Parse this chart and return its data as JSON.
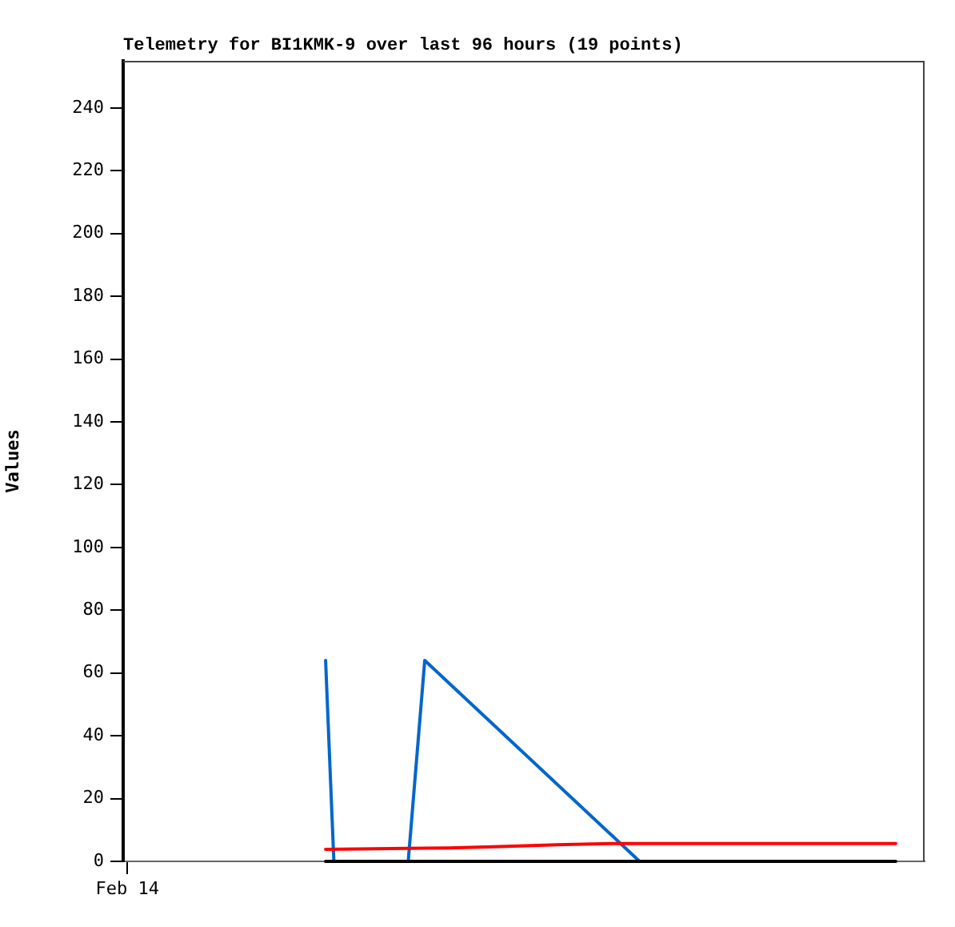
{
  "chart_data": {
    "type": "line",
    "title": "Telemetry for BI1KMK-9 over last 96 hours (19 points)",
    "ylabel": "Values",
    "categories": [
      "Feb 14",
      null,
      null,
      null,
      null,
      null,
      null,
      null,
      null,
      null,
      null,
      null,
      null,
      null,
      null,
      null,
      null,
      null,
      null,
      null,
      null,
      null,
      null,
      null,
      null,
      null,
      null,
      null,
      null,
      null,
      null,
      null,
      null,
      null,
      null,
      null,
      null,
      null,
      null,
      null,
      null,
      null,
      null,
      null,
      null,
      null,
      null,
      null,
      null,
      null,
      null,
      null,
      null,
      null,
      null,
      null,
      null,
      null,
      null,
      null,
      null,
      null,
      null,
      null,
      null,
      null,
      null,
      null,
      null,
      null,
      null,
      null,
      null,
      null,
      null,
      null,
      null,
      null,
      null,
      null,
      null,
      null,
      null,
      null,
      null,
      null,
      null,
      null,
      null,
      null,
      null,
      null,
      null,
      null,
      null,
      null,
      null
    ],
    "ylim": [
      0,
      255
    ],
    "yticks": [
      0,
      20,
      40,
      60,
      80,
      100,
      120,
      140,
      160,
      180,
      200,
      220,
      240
    ],
    "grid": false,
    "legend": false,
    "marker": "none",
    "line_style": "solid",
    "series": [
      {
        "color": "#000000",
        "values": [
          null,
          null,
          null,
          null,
          null,
          null,
          null,
          null,
          null,
          null,
          null,
          null,
          null,
          null,
          null,
          null,
          null,
          null,
          null,
          null,
          null,
          null,
          null,
          null,
          0,
          null,
          null,
          null,
          null,
          null,
          null,
          null,
          null,
          null,
          null,
          null,
          null,
          null,
          null,
          null,
          null,
          null,
          null,
          null,
          null,
          null,
          null,
          null,
          null,
          null,
          null,
          null,
          null,
          null,
          null,
          null,
          null,
          null,
          null,
          null,
          null,
          null,
          null,
          null,
          null,
          null,
          null,
          null,
          null,
          null,
          null,
          null,
          null,
          null,
          null,
          null,
          null,
          null,
          null,
          null,
          null,
          null,
          null,
          null,
          null,
          null,
          null,
          null,
          null,
          null,
          null,
          null,
          null,
          0,
          null,
          null,
          null
        ]
      },
      {
        "color": "#ff0000",
        "values": [
          null,
          null,
          null,
          null,
          null,
          null,
          null,
          null,
          null,
          null,
          null,
          null,
          null,
          null,
          null,
          null,
          null,
          null,
          null,
          null,
          null,
          null,
          null,
          null,
          3.8,
          null,
          null,
          null,
          null,
          null,
          null,
          null,
          null,
          null,
          null,
          null,
          null,
          null,
          null,
          4.3,
          null,
          null,
          null,
          null,
          null,
          null,
          4.8,
          null,
          null,
          null,
          null,
          null,
          5.3,
          null,
          null,
          null,
          null,
          null,
          null,
          5.7,
          null,
          null,
          null,
          null,
          null,
          null,
          null,
          null,
          null,
          null,
          null,
          null,
          null,
          null,
          null,
          null,
          null,
          null,
          null,
          null,
          null,
          null,
          null,
          null,
          null,
          null,
          null,
          null,
          null,
          null,
          null,
          null,
          null,
          5.7,
          null,
          null,
          null
        ]
      },
      {
        "color": "#0066cc",
        "values": [
          null,
          null,
          null,
          null,
          null,
          null,
          null,
          null,
          null,
          null,
          null,
          null,
          null,
          null,
          null,
          null,
          null,
          null,
          null,
          null,
          null,
          null,
          null,
          null,
          64,
          0,
          null,
          null,
          null,
          null,
          null,
          null,
          null,
          null,
          0,
          null,
          64,
          null,
          null,
          null,
          null,
          null,
          null,
          null,
          null,
          null,
          null,
          null,
          null,
          null,
          null,
          null,
          null,
          null,
          null,
          null,
          null,
          null,
          null,
          null,
          null,
          null,
          0,
          null,
          null,
          null,
          null,
          null,
          null,
          null,
          null,
          null,
          null,
          null,
          null,
          null,
          null,
          null,
          null,
          null,
          null,
          null,
          null,
          null,
          null,
          null,
          null,
          null,
          null,
          null,
          null,
          null,
          null,
          null,
          null,
          null,
          null
        ]
      }
    ]
  }
}
